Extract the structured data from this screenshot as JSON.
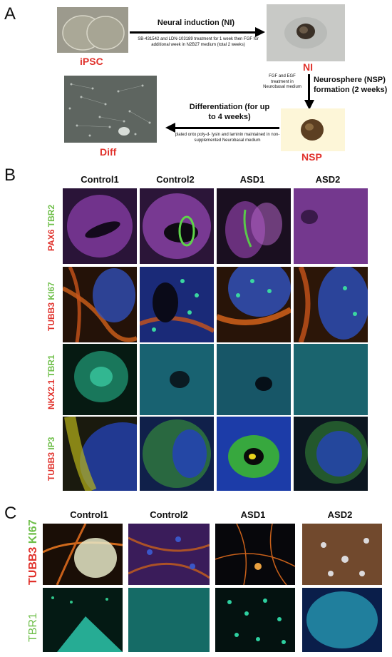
{
  "panelA": {
    "letter": "A",
    "ipsc_label": "iPSC",
    "ni_label": "NI",
    "nsp_label": "NSP",
    "diff_label": "Diff",
    "step1_title": "Neural induction (NI)",
    "step1_detail": "SB-431542 and LDN-103189  treatment for 1 week then FGF for additional week in N2B27 medium (total 2 weeks)",
    "step2_title": "Neurosphere (NSP) formation (2 weeks)",
    "step2_detail": "FGF and EGF treatment in Neurobasal medium",
    "step3_title": "Differentiation (for up to 4 weeks)",
    "step3_detail": "plated onto poly-d- lysin and laminin maintained in non-supplemented Neurobasal medium"
  },
  "panelB": {
    "letter": "B",
    "columns": [
      "Control1",
      "Control2",
      "ASD1",
      "ASD2"
    ],
    "rows": [
      {
        "red": "PAX6",
        "green": "TBR2"
      },
      {
        "red": "TUBB3",
        "green": "KI67"
      },
      {
        "red": "NKX2.1",
        "green": "TBR1"
      },
      {
        "red": "TUBB3",
        "green": "IP3"
      }
    ]
  },
  "panelC": {
    "letter": "C",
    "columns": [
      "Control1",
      "Control2",
      "ASD1",
      "ASD2"
    ],
    "rows": [
      {
        "red": "TUBB3",
        "green": "KI67"
      },
      {
        "red": "",
        "green": "TBR1"
      }
    ]
  },
  "colors": {
    "accent_red": "#e0312b",
    "label_green": "#6fbf4a"
  }
}
